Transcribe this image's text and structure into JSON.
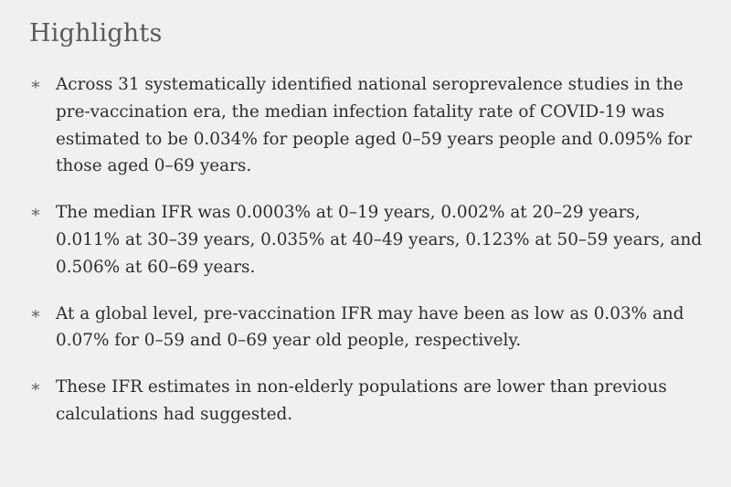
{
  "section": {
    "title": "Highlights",
    "bullet_glyph": "∗",
    "items": [
      {
        "text": "Across 31 systematically identified national seroprevalence studies in the pre-vaccination era, the median infection fatality rate of COVID-19 was estimated to be 0.034% for people aged 0–59 years people and 0.095% for those aged 0–69 years."
      },
      {
        "text": "The median IFR was 0.0003% at 0–19 years, 0.002% at 20–29 years, 0.011% at 30–39 years, 0.035% at 40–49 years, 0.123% at 50–59 years, and 0.506% at 60–69 years."
      },
      {
        "text": "At a global level, pre-vaccination IFR may have been as low as 0.03% and 0.07% for 0–59 and 0–69 year old people, respectively."
      },
      {
        "text": "These IFR estimates in non-elderly populations are lower than previous calculations had suggested."
      }
    ]
  },
  "colors": {
    "background": "#f0f0f0",
    "heading": "#5a5a5a",
    "body_text": "#2e2e2e"
  }
}
